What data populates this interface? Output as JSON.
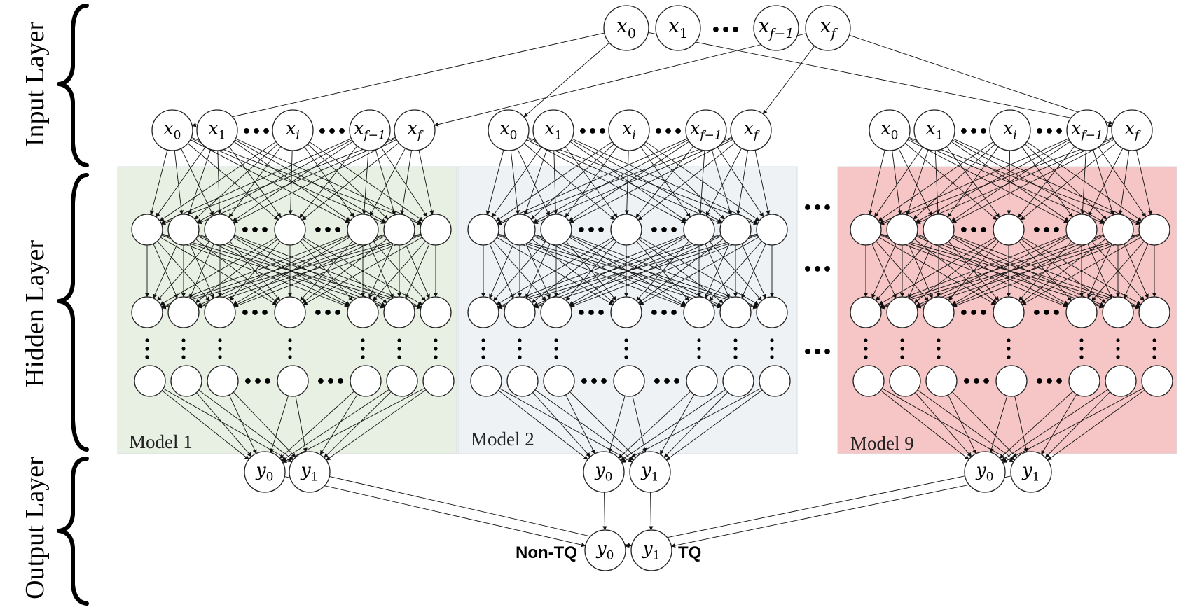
{
  "layers": {
    "input": "Input Layer",
    "hidden": "Hidden Layer",
    "output": "Output Layer"
  },
  "top_inputs": {
    "nodes": [
      "x_0",
      "x_1",
      "x_{f-1}",
      "x_f"
    ]
  },
  "model_inputs": {
    "nodes": [
      "x_0",
      "x_1",
      "x_i",
      "x_{f-1}",
      "x_f"
    ]
  },
  "models": [
    {
      "name": "Model 1",
      "color": "#e8f0e3"
    },
    {
      "name": "Model 2",
      "color": "#eef2f4"
    },
    {
      "name": "Model 9",
      "color": "#f6c6c6"
    }
  ],
  "model_outputs": [
    "y_0",
    "y_1"
  ],
  "final_output": {
    "nodes": [
      "y_0",
      "y_1"
    ],
    "left_label": "Non-TQ",
    "right_label": "TQ"
  },
  "ellipsis": "•••"
}
